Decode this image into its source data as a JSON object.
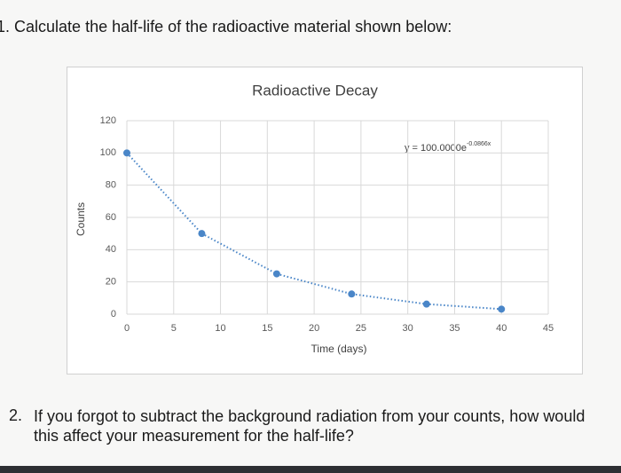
{
  "questions": [
    {
      "number": "1.",
      "lines": [
        "Calculate the half-life of the radioactive material shown below:"
      ]
    },
    {
      "number": "2.",
      "lines": [
        "If you forgot to subtract the background radiation from your counts, how would",
        "this affect your measurement for the half-life?"
      ]
    }
  ],
  "chart_data": {
    "type": "scatter",
    "title": "Radioactive Decay",
    "x_label": "Time (days)",
    "y_label": "Counts",
    "x": [
      0,
      8,
      16,
      24,
      32,
      40
    ],
    "values": [
      100,
      50,
      25,
      12.5,
      6.25,
      3.125
    ],
    "color": "#4a86c8",
    "xlim": [
      0,
      45
    ],
    "xticks": [
      0,
      5,
      10,
      15,
      20,
      25,
      30,
      35,
      40,
      45
    ],
    "ylim": [
      0,
      120
    ],
    "yticks": [
      0,
      20,
      40,
      60,
      80,
      100,
      120
    ],
    "grid": true,
    "trendline": true,
    "annotation": {
      "text": "y = 100.0000e",
      "superscript": "-0.0866x"
    }
  }
}
